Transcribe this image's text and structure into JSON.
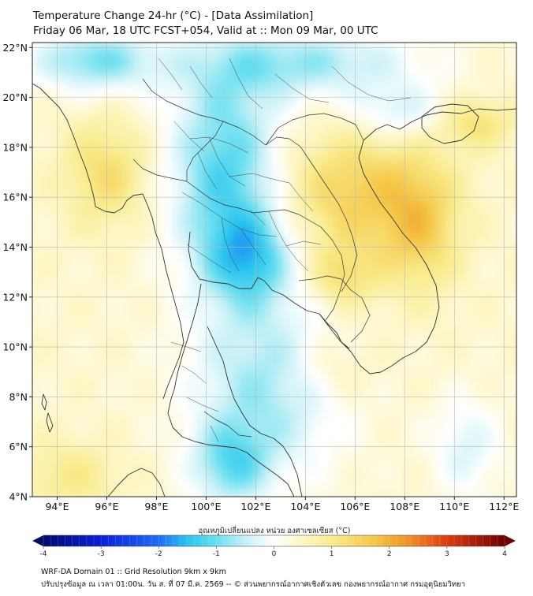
{
  "title": {
    "line1": "Temperature Change 24-hr (°C) - [Data Assimilation]",
    "line2": "Friday 06 Mar, 18 UTC FCST+054, Valid at :: Mon 09 Mar, 00 UTC"
  },
  "map": {
    "lon_range": [
      93,
      112.5
    ],
    "lat_range": [
      4,
      22.2
    ],
    "lon_ticks": [
      {
        "value": 94,
        "label": "94°E"
      },
      {
        "value": 96,
        "label": "96°E"
      },
      {
        "value": 98,
        "label": "98°E"
      },
      {
        "value": 100,
        "label": "100°E"
      },
      {
        "value": 102,
        "label": "102°E"
      },
      {
        "value": 104,
        "label": "104°E"
      },
      {
        "value": 106,
        "label": "106°E"
      },
      {
        "value": 108,
        "label": "108°E"
      },
      {
        "value": 110,
        "label": "110°E"
      },
      {
        "value": 112,
        "label": "112°E"
      }
    ],
    "lat_ticks": [
      {
        "value": 4,
        "label": "4°N"
      },
      {
        "value": 6,
        "label": "6°N"
      },
      {
        "value": 8,
        "label": "8°N"
      },
      {
        "value": 10,
        "label": "10°N"
      },
      {
        "value": 12,
        "label": "12°N"
      },
      {
        "value": 14,
        "label": "14°N"
      },
      {
        "value": 16,
        "label": "16°N"
      },
      {
        "value": 18,
        "label": "18°N"
      },
      {
        "value": 20,
        "label": "20°N"
      },
      {
        "value": 22,
        "label": "22°N"
      }
    ],
    "field": {
      "units": "°C",
      "base": 0.4,
      "features": [
        {
          "lon": 100.8,
          "lat": 17.0,
          "amp": -1.6,
          "sx": 1.6,
          "sy": 3.0
        },
        {
          "lon": 101.8,
          "lat": 13.6,
          "amp": -1.3,
          "sx": 1.2,
          "sy": 1.3
        },
        {
          "lon": 102.5,
          "lat": 8.5,
          "amp": -1.1,
          "sx": 2.2,
          "sy": 2.6
        },
        {
          "lon": 101.0,
          "lat": 5.3,
          "amp": -1.2,
          "sx": 1.1,
          "sy": 1.2
        },
        {
          "lon": 95.5,
          "lat": 21.5,
          "amp": -1.3,
          "sx": 1.8,
          "sy": 0.9
        },
        {
          "lon": 104.0,
          "lat": 21.4,
          "amp": -1.1,
          "sx": 3.2,
          "sy": 1.0
        },
        {
          "lon": 107.8,
          "lat": 19.4,
          "amp": -0.8,
          "sx": 1.4,
          "sy": 0.8
        },
        {
          "lon": 110.5,
          "lat": 6.0,
          "amp": -0.7,
          "sx": 1.0,
          "sy": 1.4
        },
        {
          "lon": 106.0,
          "lat": 16.2,
          "amp": 1.1,
          "sx": 2.2,
          "sy": 1.8
        },
        {
          "lon": 108.6,
          "lat": 14.8,
          "amp": 1.0,
          "sx": 1.1,
          "sy": 1.8
        },
        {
          "lon": 105.5,
          "lat": 12.8,
          "amp": 0.8,
          "sx": 1.0,
          "sy": 0.9
        },
        {
          "lon": 96.0,
          "lat": 17.0,
          "amp": 0.9,
          "sx": 1.2,
          "sy": 1.5
        },
        {
          "lon": 110.8,
          "lat": 19.0,
          "amp": 0.8,
          "sx": 1.1,
          "sy": 0.7
        },
        {
          "lon": 94.5,
          "lat": 4.8,
          "amp": 0.6,
          "sx": 1.4,
          "sy": 1.0
        },
        {
          "lon": 105.0,
          "lat": 9.2,
          "amp": 0.5,
          "sx": 1.2,
          "sy": 1.0
        }
      ]
    }
  },
  "colorbar": {
    "title": "อุณหภูมิเปลี่ยนแปลง หน่วย องศาเซลเซียส (°C)",
    "min": -4,
    "max": 4,
    "labels": [
      "-4",
      "-3",
      "-2",
      "-1",
      "0",
      "1",
      "2",
      "3",
      "4"
    ]
  },
  "footer": {
    "line1": "WRF-DA Domain 01 :: Grid Resolution 9km x 9km",
    "line2": "ปรับปรุงข้อมูล ณ เวลา 01:00น. วัน ส. ที่ 07 มี.ค. 2569 -- © ส่วนพยากรณ์อากาศเชิงตัวเลข กองพยากรณ์อากาศ กรมอุตุนิยมวิทยา"
  }
}
